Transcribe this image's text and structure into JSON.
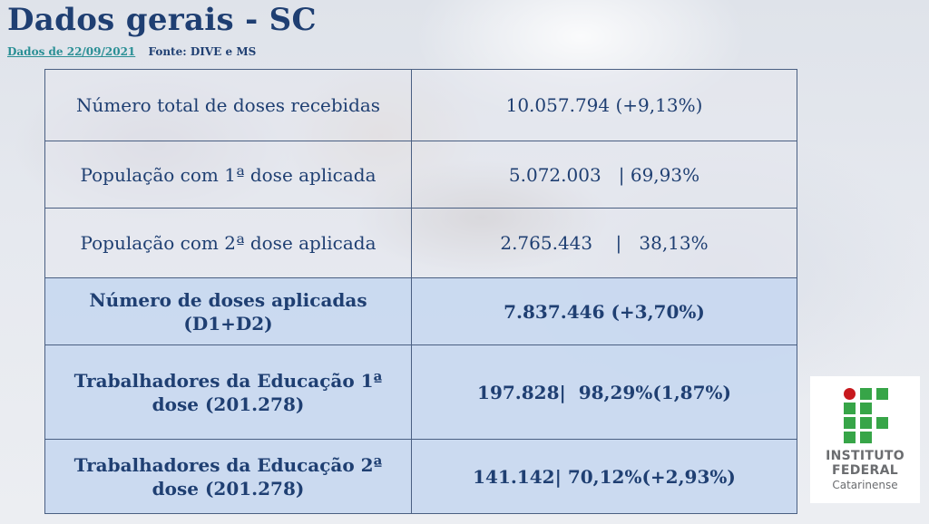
{
  "header": {
    "title": "Dados gerais - SC",
    "date": "Dados de 22/09/2021",
    "source": "Fonte: DIVE  e MS"
  },
  "table": {
    "rows": [
      {
        "label": "Número total de doses recebidas",
        "value": "10.057.794 (+9,13%)",
        "style": "light"
      },
      {
        "label": "População com 1ª dose aplicada",
        "value": "5.072.003   | 69,93%",
        "style": "light"
      },
      {
        "label": "População com 2ª dose aplicada",
        "value": "2.765.443    |   38,13%",
        "style": "light"
      },
      {
        "label": "Número de doses aplicadas (D1+D2)",
        "value": "7.837.446 (+3,70%)",
        "style": "highlight"
      },
      {
        "label": "Trabalhadores da Educação 1ª dose (201.278)",
        "value": "197.828|  98,29%(1,87%)",
        "style": "highlight"
      },
      {
        "label": "Trabalhadores da Educação 2ª dose (201.278)",
        "value": "141.142| 70,12%(+2,93%)",
        "style": "highlight"
      }
    ]
  },
  "logo": {
    "line1": "INSTITUTO",
    "line2": "FEDERAL",
    "line3": "Catarinense",
    "colors": {
      "green": "#37a548",
      "red": "#c8191e",
      "text": "#6b6d70"
    }
  },
  "colors": {
    "title": "#1f3f72",
    "date_link": "#2a8f95",
    "highlight_row": "#c8d8f0"
  }
}
